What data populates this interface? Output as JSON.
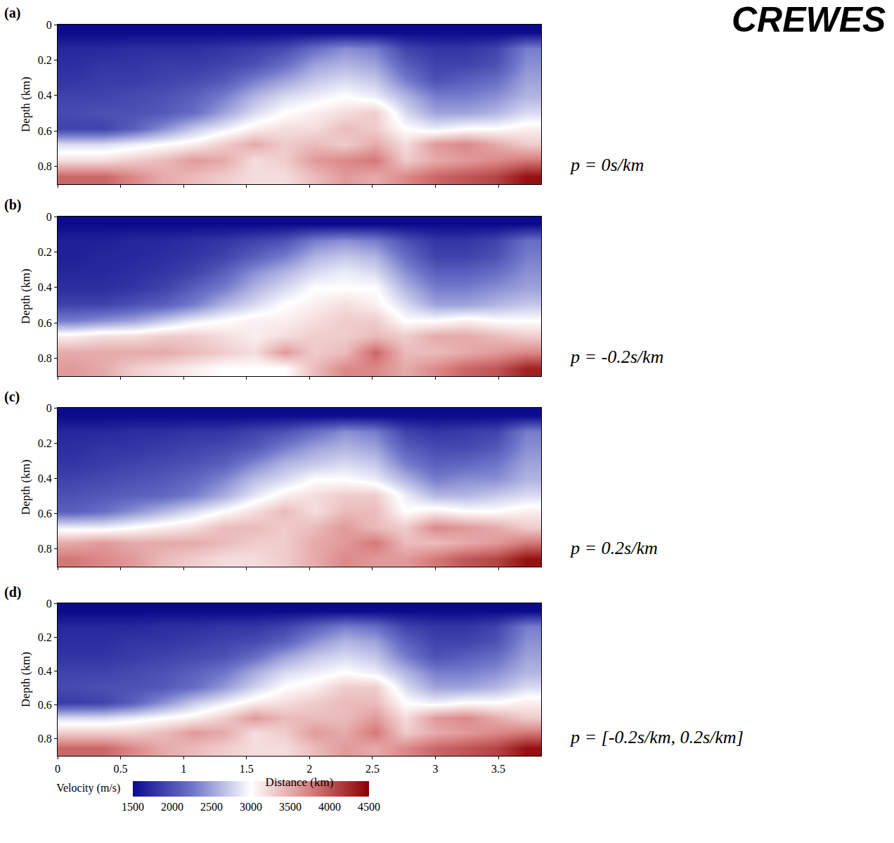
{
  "logo": "CREWES",
  "chart_data": [
    {
      "type": "heatmap",
      "title": "(a)",
      "annotation": "p = 0s/km",
      "ylabel": "Depth (km)",
      "tick_labels": "y",
      "x": [
        0.12,
        0.36,
        0.6,
        0.84,
        1.08,
        1.32,
        1.56,
        1.8,
        2.04,
        2.28,
        2.52,
        2.76,
        3.0,
        3.24,
        3.48,
        3.72
      ],
      "y": [
        0.045,
        0.135,
        0.225,
        0.315,
        0.405,
        0.495,
        0.585,
        0.675,
        0.765,
        0.855
      ],
      "xlim": [
        0,
        3.84
      ],
      "ylim": [
        0.9,
        0
      ],
      "xticks": [
        0,
        0.5,
        1,
        1.5,
        2,
        2.5,
        3,
        3.5
      ],
      "yticks": [
        0,
        0.2,
        0.4,
        0.6,
        0.8
      ],
      "z": [
        [
          1500,
          1500,
          1500,
          1500,
          1500,
          1500,
          1500,
          1500,
          1500,
          1500,
          1500,
          1500,
          1500,
          1500,
          1500,
          1500
        ],
        [
          1700,
          1700,
          1750,
          1750,
          1750,
          1800,
          1850,
          1950,
          2200,
          2400,
          2300,
          1900,
          1800,
          1800,
          1900,
          2300
        ],
        [
          1750,
          1800,
          1800,
          1850,
          1850,
          1900,
          2000,
          2200,
          2500,
          2600,
          2500,
          2100,
          1900,
          1900,
          2000,
          2400
        ],
        [
          1800,
          1850,
          1850,
          1900,
          1950,
          2050,
          2300,
          2500,
          2700,
          2800,
          2700,
          2300,
          2000,
          2100,
          2200,
          2500
        ],
        [
          1900,
          1900,
          1950,
          2000,
          2100,
          2300,
          2600,
          2800,
          2900,
          3000,
          2900,
          2600,
          2300,
          2300,
          2400,
          2600
        ],
        [
          1950,
          2000,
          2000,
          2050,
          2200,
          2500,
          2800,
          3000,
          3100,
          3200,
          3300,
          2800,
          2500,
          2500,
          2600,
          2800
        ],
        [
          1900,
          1900,
          2100,
          2400,
          2700,
          2900,
          3100,
          3200,
          3200,
          3400,
          3300,
          3000,
          2900,
          3000,
          3000,
          3100
        ],
        [
          2800,
          2800,
          2900,
          3000,
          3100,
          3300,
          3500,
          3300,
          3400,
          3300,
          3500,
          3200,
          3600,
          3700,
          3500,
          3300
        ],
        [
          3200,
          3200,
          3300,
          3400,
          3600,
          3500,
          3200,
          3300,
          3600,
          3700,
          3800,
          3300,
          3500,
          3600,
          3700,
          3800
        ],
        [
          3900,
          3900,
          3700,
          3500,
          3400,
          3300,
          3200,
          3200,
          3400,
          3600,
          3500,
          3700,
          3900,
          4000,
          4100,
          4400
        ]
      ]
    },
    {
      "type": "heatmap",
      "title": "(b)",
      "annotation": "p = -0.2s/km",
      "ylabel": "Depth (km)",
      "tick_labels": "y",
      "x": [
        0.12,
        0.36,
        0.6,
        0.84,
        1.08,
        1.32,
        1.56,
        1.8,
        2.04,
        2.28,
        2.52,
        2.76,
        3.0,
        3.24,
        3.48,
        3.72
      ],
      "y": [
        0.045,
        0.135,
        0.225,
        0.315,
        0.405,
        0.495,
        0.585,
        0.675,
        0.765,
        0.855
      ],
      "xlim": [
        0,
        3.84
      ],
      "ylim": [
        0.9,
        0
      ],
      "xticks": [
        0,
        0.5,
        1,
        1.5,
        2,
        2.5,
        3,
        3.5
      ],
      "yticks": [
        0,
        0.2,
        0.4,
        0.6,
        0.8
      ],
      "z": [
        [
          1500,
          1500,
          1500,
          1500,
          1500,
          1500,
          1500,
          1500,
          1500,
          1500,
          1500,
          1500,
          1500,
          1500,
          1500,
          1500
        ],
        [
          1650,
          1650,
          1700,
          1700,
          1750,
          1800,
          1900,
          2000,
          2300,
          2400,
          2300,
          2000,
          1800,
          1800,
          1900,
          2200
        ],
        [
          1650,
          1700,
          1700,
          1750,
          1800,
          1900,
          2100,
          2300,
          2600,
          2700,
          2600,
          2200,
          1900,
          1900,
          2000,
          2300
        ],
        [
          1700,
          1700,
          1750,
          1800,
          1900,
          2100,
          2400,
          2600,
          2800,
          2900,
          2800,
          2400,
          2100,
          2100,
          2200,
          2400
        ],
        [
          1750,
          1750,
          1800,
          1900,
          2100,
          2300,
          2600,
          2800,
          3000,
          3000,
          3000,
          2600,
          2300,
          2300,
          2400,
          2500
        ],
        [
          1900,
          1900,
          2000,
          2100,
          2300,
          2600,
          2800,
          3000,
          3100,
          3200,
          3100,
          2800,
          2500,
          2500,
          2600,
          2700
        ],
        [
          2300,
          2400,
          2500,
          2700,
          2900,
          3000,
          3100,
          3100,
          3200,
          3300,
          3300,
          3000,
          3000,
          3100,
          3000,
          3000
        ],
        [
          3100,
          3200,
          3200,
          3300,
          3300,
          3200,
          3100,
          3200,
          3300,
          3300,
          3400,
          3300,
          3500,
          3500,
          3400,
          3300
        ],
        [
          3500,
          3500,
          3500,
          3500,
          3400,
          3300,
          3200,
          3600,
          3300,
          3400,
          3900,
          3400,
          3400,
          3500,
          3600,
          3700
        ],
        [
          3600,
          3500,
          3300,
          3200,
          3100,
          3000,
          3000,
          3000,
          3400,
          3700,
          3700,
          3500,
          3700,
          3900,
          4000,
          4300
        ]
      ]
    },
    {
      "type": "heatmap",
      "title": "(c)",
      "annotation": "p = 0.2s/km",
      "ylabel": "Depth (km)",
      "tick_labels": "y",
      "x": [
        0.12,
        0.36,
        0.6,
        0.84,
        1.08,
        1.32,
        1.56,
        1.8,
        2.04,
        2.28,
        2.52,
        2.76,
        3.0,
        3.24,
        3.48,
        3.72
      ],
      "y": [
        0.045,
        0.135,
        0.225,
        0.315,
        0.405,
        0.495,
        0.585,
        0.675,
        0.765,
        0.855
      ],
      "xlim": [
        0,
        3.84
      ],
      "ylim": [
        0.9,
        0
      ],
      "xticks": [
        0,
        0.5,
        1,
        1.5,
        2,
        2.5,
        3,
        3.5
      ],
      "yticks": [
        0,
        0.2,
        0.4,
        0.6,
        0.8
      ],
      "z": [
        [
          1500,
          1500,
          1500,
          1500,
          1500,
          1500,
          1500,
          1500,
          1500,
          1500,
          1500,
          1500,
          1500,
          1500,
          1500,
          1500
        ],
        [
          1700,
          1700,
          1750,
          1750,
          1800,
          1800,
          1900,
          2000,
          2200,
          2400,
          2300,
          1900,
          1800,
          1850,
          1900,
          2300
        ],
        [
          1750,
          1800,
          1800,
          1850,
          1900,
          1950,
          2050,
          2300,
          2500,
          2600,
          2500,
          2100,
          1950,
          1950,
          2050,
          2400
        ],
        [
          1800,
          1850,
          1900,
          1950,
          2000,
          2100,
          2350,
          2600,
          2700,
          2800,
          2700,
          2300,
          2100,
          2150,
          2250,
          2500
        ],
        [
          1900,
          1950,
          2000,
          2050,
          2150,
          2350,
          2650,
          2800,
          3000,
          3000,
          2900,
          2600,
          2300,
          2400,
          2400,
          2600
        ],
        [
          2000,
          2050,
          2100,
          2150,
          2300,
          2550,
          2850,
          3100,
          3200,
          3300,
          3300,
          2900,
          2600,
          2600,
          2700,
          2800
        ],
        [
          2100,
          2200,
          2400,
          2600,
          2800,
          3000,
          3200,
          3400,
          3200,
          3400,
          3400,
          3000,
          3100,
          3000,
          3000,
          3100
        ],
        [
          2900,
          2900,
          3000,
          3100,
          3200,
          3400,
          3400,
          3300,
          3400,
          3600,
          3400,
          3300,
          3700,
          3600,
          3500,
          3300
        ],
        [
          3500,
          3600,
          3500,
          3500,
          3500,
          3400,
          3300,
          3300,
          3500,
          3600,
          3800,
          3400,
          3400,
          3500,
          3600,
          3800
        ],
        [
          3800,
          3700,
          3600,
          3400,
          3300,
          3200,
          3200,
          3300,
          3500,
          3700,
          3600,
          3600,
          3800,
          4000,
          4100,
          4400
        ]
      ]
    },
    {
      "type": "heatmap",
      "title": "(d)",
      "annotation": "p = [-0.2s/km, 0.2s/km]",
      "ylabel": "Depth (km)",
      "xlabel": "Distance (km)",
      "x": [
        0.12,
        0.36,
        0.6,
        0.84,
        1.08,
        1.32,
        1.56,
        1.8,
        2.04,
        2.28,
        2.52,
        2.76,
        3.0,
        3.24,
        3.48,
        3.72
      ],
      "y": [
        0.045,
        0.135,
        0.225,
        0.315,
        0.405,
        0.495,
        0.585,
        0.675,
        0.765,
        0.855
      ],
      "xlim": [
        0,
        3.84
      ],
      "ylim": [
        0.9,
        0
      ],
      "xticks": [
        0,
        0.5,
        1,
        1.5,
        2,
        2.5,
        3,
        3.5
      ],
      "yticks": [
        0,
        0.2,
        0.4,
        0.6,
        0.8
      ],
      "colorbar": {
        "title": "Velocity (m/s)",
        "range": [
          1500,
          4500
        ],
        "ticks": [
          1500,
          2000,
          2500,
          3000,
          3500,
          4000,
          4500
        ]
      },
      "z": [
        [
          1500,
          1500,
          1500,
          1500,
          1500,
          1500,
          1500,
          1500,
          1500,
          1500,
          1500,
          1500,
          1500,
          1500,
          1500,
          1500
        ],
        [
          1700,
          1700,
          1700,
          1750,
          1750,
          1800,
          1800,
          1900,
          2100,
          2300,
          2200,
          1900,
          1800,
          1800,
          1900,
          2300
        ],
        [
          1750,
          1750,
          1800,
          1800,
          1850,
          1900,
          1950,
          2100,
          2400,
          2600,
          2500,
          2100,
          1900,
          1900,
          2000,
          2400
        ],
        [
          1800,
          1800,
          1850,
          1900,
          1950,
          2000,
          2200,
          2500,
          2700,
          2800,
          2700,
          2300,
          2000,
          2100,
          2200,
          2500
        ],
        [
          1900,
          1900,
          1950,
          2000,
          2100,
          2250,
          2550,
          2800,
          2900,
          3000,
          2900,
          2600,
          2300,
          2300,
          2400,
          2600
        ],
        [
          1950,
          2000,
          2000,
          2050,
          2200,
          2450,
          2750,
          3000,
          3100,
          3300,
          3300,
          2800,
          2500,
          2500,
          2600,
          2800
        ],
        [
          1850,
          1900,
          2100,
          2400,
          2700,
          2900,
          3100,
          3200,
          3300,
          3400,
          3400,
          3000,
          2900,
          3000,
          3000,
          3100
        ],
        [
          2800,
          2800,
          2900,
          3000,
          3100,
          3300,
          3600,
          3400,
          3400,
          3400,
          3600,
          3200,
          3600,
          3700,
          3500,
          3300
        ],
        [
          3300,
          3300,
          3300,
          3400,
          3600,
          3500,
          3200,
          3300,
          3600,
          3500,
          3800,
          3300,
          3500,
          3600,
          3700,
          3800
        ],
        [
          3900,
          3900,
          3700,
          3500,
          3400,
          3300,
          3200,
          3200,
          3400,
          3600,
          3500,
          3700,
          3900,
          4000,
          4100,
          4400
        ]
      ]
    }
  ]
}
